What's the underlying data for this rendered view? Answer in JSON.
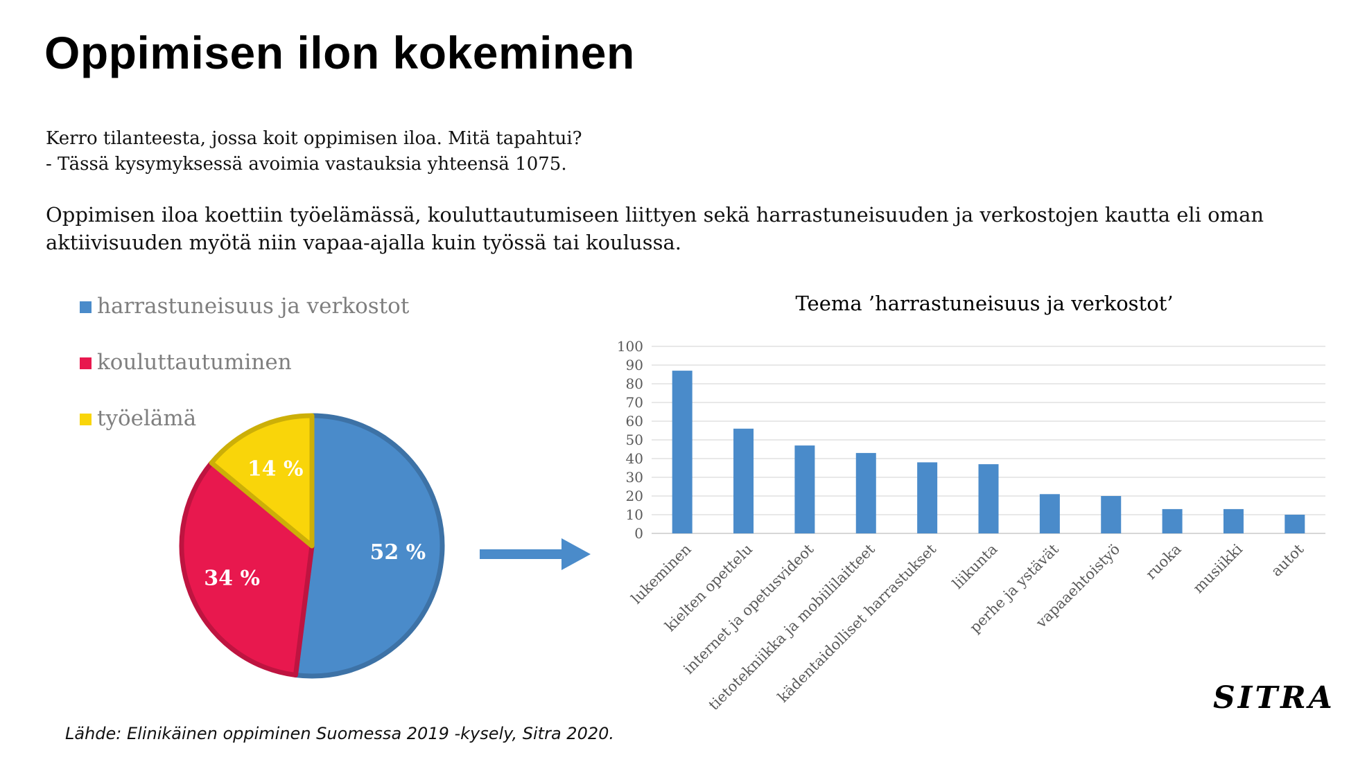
{
  "title": "Oppimisen ilon kokeminen",
  "question": {
    "line1": "Kerro tilanteesta, jossa koit oppimisen iloa. Mitä tapahtui?",
    "line2": "- Tässä kysymyksessä avoimia vastauksia yhteensä 1075."
  },
  "summary": "Oppimisen iloa koettiin työelämässä, kouluttautumiseen liittyen sekä harrastuneisuuden ja verkostojen kautta eli oman aktiivisuuden myötä niin vapaa-ajalla kuin työssä tai koulussa.",
  "source": "Lähde: Elinikäinen oppiminen Suomessa 2019 -kysely, Sitra 2020.",
  "logo_text": "SITRA",
  "colors": {
    "blue": "#4a8bca",
    "red": "#e8184e",
    "yellow": "#f9d50a",
    "bar": "#4a8bca",
    "grid": "#d9d9d9"
  },
  "chart_data": [
    {
      "type": "pie",
      "slices": [
        {
          "label": "harrastuneisuus ja verkostot",
          "value": 52,
          "display": "52 %",
          "color": "#4a8bca"
        },
        {
          "label": "kouluttautuminen",
          "value": 34,
          "display": "34 %",
          "color": "#e8184e"
        },
        {
          "label": "työelämä",
          "value": 14,
          "display": "14 %",
          "color": "#f9d50a"
        }
      ],
      "legend_position": "top-left"
    },
    {
      "type": "bar",
      "title": "Teema ’harrastuneisuus ja verkostot’",
      "categories": [
        "lukeminen",
        "kielten opettelu",
        "internet ja opetusvideot",
        "tietotekniikka ja mobiililaitteet",
        "kädentaidolliset harrastukset",
        "liikunta",
        "perhe ja ystävät",
        "vapaaehtoistyö",
        "ruoka",
        "musiikki",
        "autot"
      ],
      "values": [
        87,
        56,
        47,
        43,
        38,
        37,
        21,
        20,
        13,
        13,
        10
      ],
      "ylim": [
        0,
        100
      ],
      "yticks": [
        "0",
        "10",
        "20",
        "30",
        "40",
        "50",
        "60",
        "70",
        "80",
        "90",
        "100"
      ],
      "grid": true,
      "xlabel": "",
      "ylabel": ""
    }
  ]
}
